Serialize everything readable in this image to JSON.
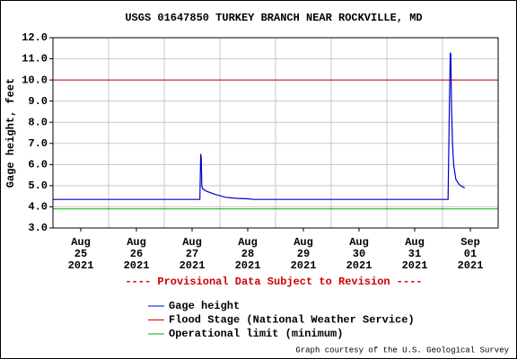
{
  "chart_data": {
    "type": "line",
    "title": "USGS 01647850 TURKEY BRANCH NEAR ROCKVILLE, MD",
    "ylabel": "Gage height, feet",
    "xlim": [
      0,
      8
    ],
    "ylim": [
      3,
      12
    ],
    "yticks": [
      {
        "value": 3,
        "label": "3.0"
      },
      {
        "value": 4,
        "label": "4.0"
      },
      {
        "value": 5,
        "label": "5.0"
      },
      {
        "value": 6,
        "label": "6.0"
      },
      {
        "value": 7,
        "label": "7.0"
      },
      {
        "value": 8,
        "label": "8.0"
      },
      {
        "value": 9,
        "label": "9.0"
      },
      {
        "value": 10,
        "label": "10.0"
      },
      {
        "value": 11,
        "label": "11.0"
      },
      {
        "value": 12,
        "label": "12.0"
      }
    ],
    "xticks": [
      {
        "value": 0.5,
        "label": [
          "Aug",
          "25",
          "2021"
        ]
      },
      {
        "value": 1.5,
        "label": [
          "Aug",
          "26",
          "2021"
        ]
      },
      {
        "value": 2.5,
        "label": [
          "Aug",
          "27",
          "2021"
        ]
      },
      {
        "value": 3.5,
        "label": [
          "Aug",
          "28",
          "2021"
        ]
      },
      {
        "value": 4.5,
        "label": [
          "Aug",
          "29",
          "2021"
        ]
      },
      {
        "value": 5.5,
        "label": [
          "Aug",
          "30",
          "2021"
        ]
      },
      {
        "value": 6.5,
        "label": [
          "Aug",
          "31",
          "2021"
        ]
      },
      {
        "value": 7.5,
        "label": [
          "Sep",
          "01",
          "2021"
        ]
      }
    ],
    "xgrid": [
      1,
      2,
      3,
      4,
      5,
      6,
      7
    ],
    "grid": true,
    "series": [
      {
        "name": "Gage height",
        "color": "#0000cc",
        "x": [
          0,
          2.64,
          2.655,
          2.665,
          2.675,
          2.69,
          2.75,
          2.9,
          3.1,
          3.3,
          3.5,
          3.6,
          7.1,
          7.125,
          7.14,
          7.15,
          7.16,
          7.18,
          7.2,
          7.24,
          7.3,
          7.36,
          7.4
        ],
        "values": [
          4.35,
          4.35,
          6.5,
          6.3,
          5.0,
          4.85,
          4.75,
          4.6,
          4.45,
          4.4,
          4.38,
          4.35,
          4.35,
          9.0,
          11.3,
          11.2,
          9.0,
          7.0,
          6.0,
          5.3,
          5.05,
          4.95,
          4.9
        ]
      }
    ],
    "reference_lines": [
      {
        "name": "Flood Stage (National Weather Service)",
        "color": "#cc0000",
        "value": 10
      },
      {
        "name": "Operational limit (minimum)",
        "color": "#00aa00",
        "value": 3.9
      }
    ],
    "notice": "---- Provisional Data Subject to Revision ----",
    "credit": "Graph courtesy of the U.S. Geological Survey"
  }
}
